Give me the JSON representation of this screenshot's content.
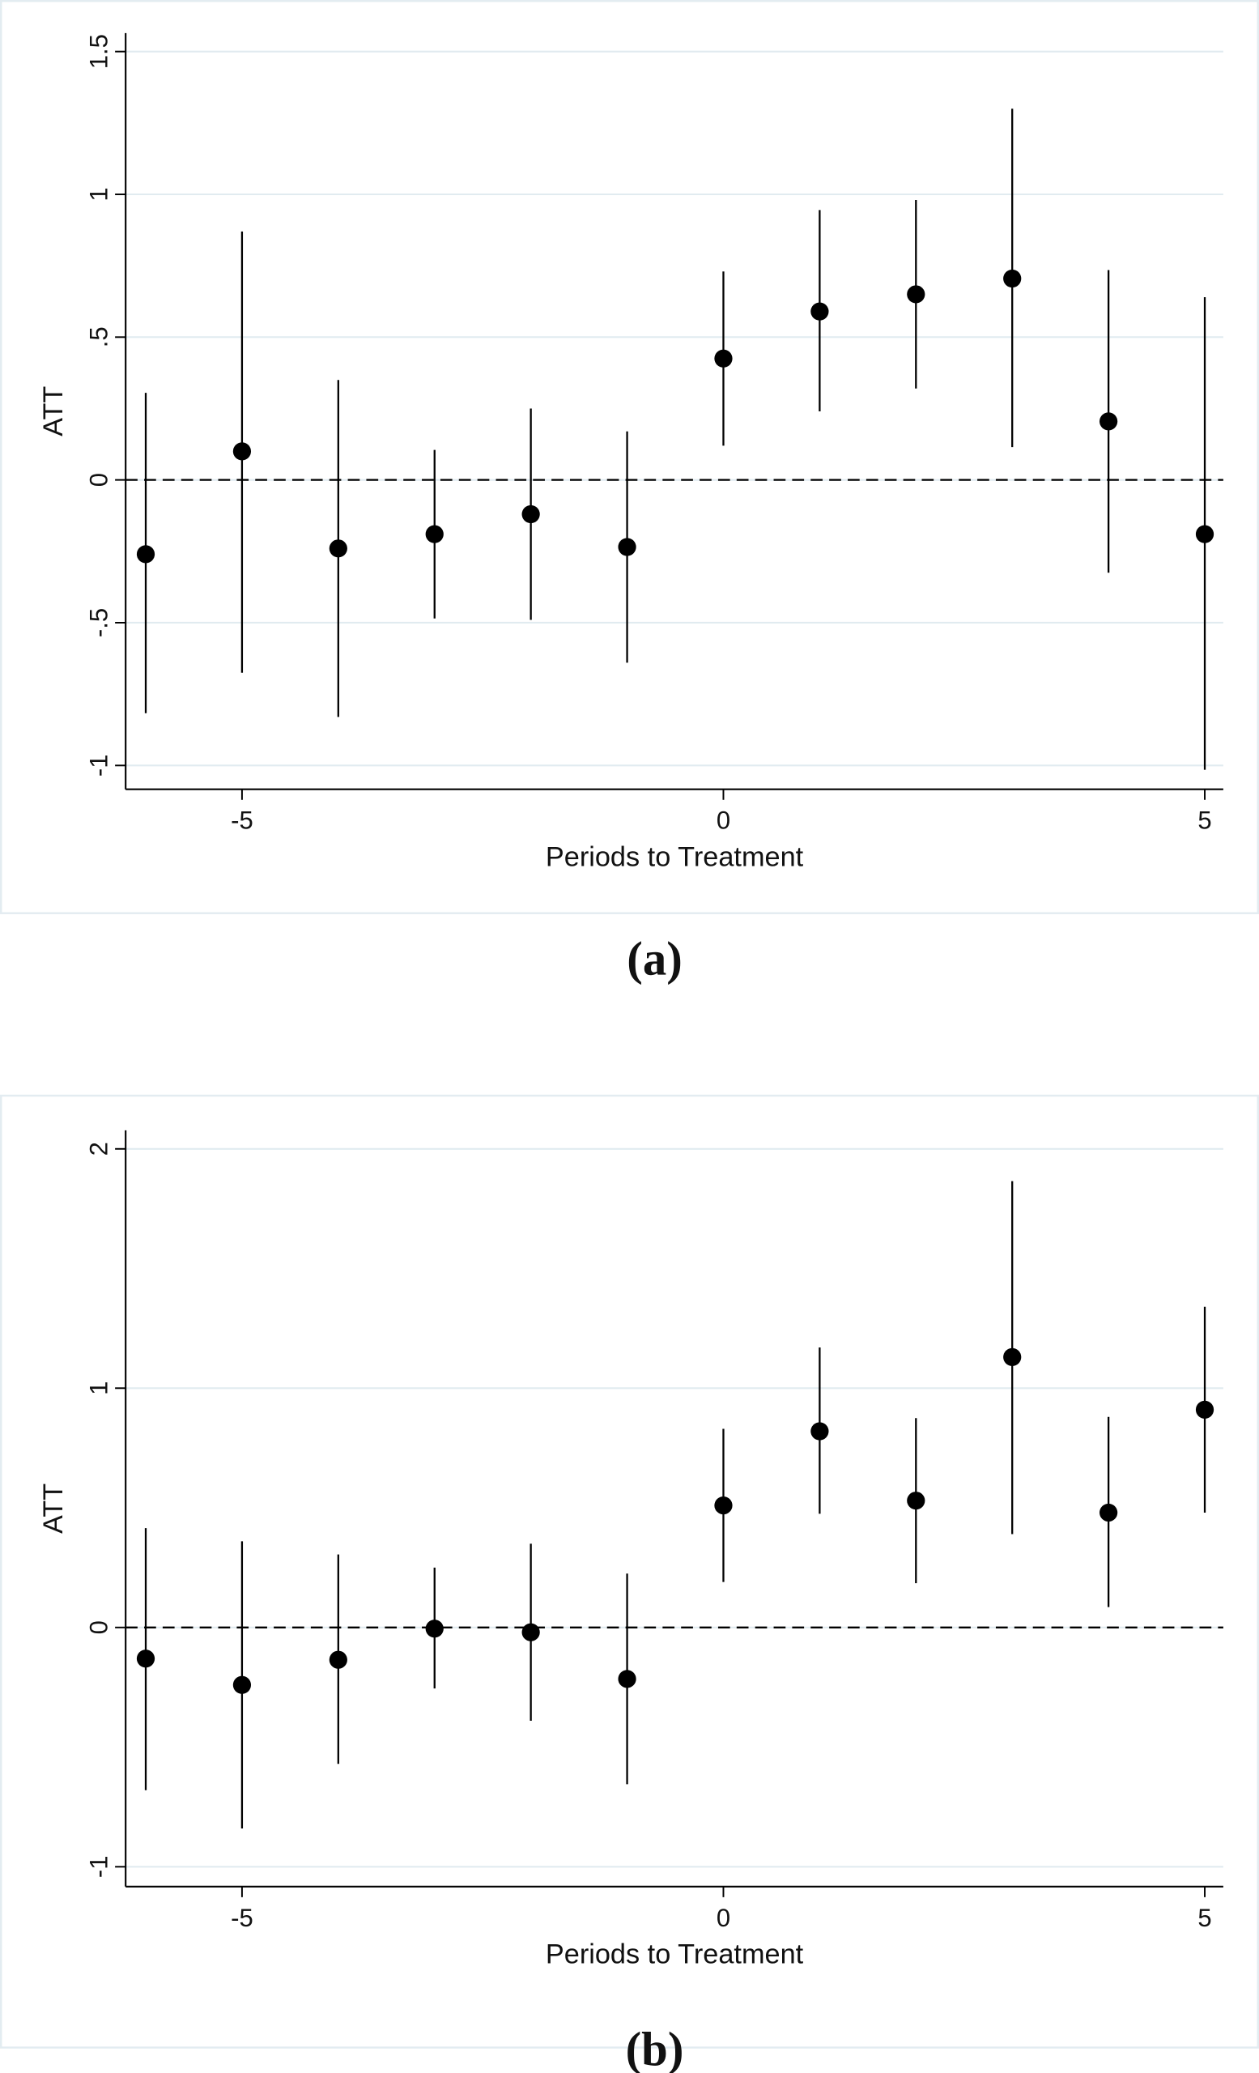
{
  "colors": {
    "panel_border": "#e3ecf1",
    "grid": "#e1ebf0",
    "marker": "#000000",
    "axis": "#000000"
  },
  "chart_data": [
    {
      "type": "scatter",
      "panel_label": "(a)",
      "title": "",
      "xlabel": "Periods to Treatment",
      "ylabel": "ATT",
      "xlim": [
        -6.2,
        5.2
      ],
      "ylim": [
        -1.08,
        1.57
      ],
      "xticks": [
        -5,
        0,
        5
      ],
      "xtick_labels": [
        "-5",
        "0",
        "5"
      ],
      "yticks": [
        1.5,
        1,
        0.5,
        0,
        -0.5,
        -1
      ],
      "ytick_labels": [
        "1.5",
        "1",
        ".5",
        "0",
        "-.5",
        "-1"
      ],
      "grid": true,
      "reference_line": {
        "y": 0,
        "style": "dashed"
      },
      "error_bars": "confidence interval",
      "x": [
        -6,
        -5,
        -4,
        -3,
        -2,
        -1,
        0,
        1,
        2,
        3,
        4,
        5
      ],
      "y": [
        -0.26,
        0.1,
        -0.24,
        -0.19,
        -0.12,
        -0.235,
        0.425,
        0.59,
        0.65,
        0.705,
        0.205,
        -0.19
      ],
      "ci_upper": [
        0.305,
        0.87,
        0.35,
        0.105,
        0.25,
        0.17,
        0.73,
        0.945,
        0.98,
        1.3,
        0.735,
        0.64
      ],
      "ci_lower": [
        -0.817,
        -0.675,
        -0.83,
        -0.485,
        -0.49,
        -0.64,
        0.12,
        0.24,
        0.32,
        0.115,
        -0.325,
        -1.015
      ]
    },
    {
      "type": "scatter",
      "panel_label": "(b)",
      "title": "",
      "xlabel": "Periods to Treatment",
      "ylabel": "ATT",
      "xlim": [
        -6.2,
        5.2
      ],
      "ylim": [
        -1.08,
        2.08
      ],
      "xticks": [
        -5,
        0,
        5
      ],
      "xtick_labels": [
        "-5",
        "0",
        "5"
      ],
      "yticks": [
        2,
        1,
        0,
        -1
      ],
      "ytick_labels": [
        "2",
        "1",
        "0",
        "-1"
      ],
      "grid": true,
      "reference_line": {
        "y": 0,
        "style": "dashed"
      },
      "error_bars": "confidence interval",
      "x": [
        -6,
        -5,
        -4,
        -3,
        -2,
        -1,
        0,
        1,
        2,
        3,
        4,
        5
      ],
      "y": [
        -0.13,
        -0.24,
        -0.135,
        -0.005,
        -0.02,
        -0.215,
        0.51,
        0.82,
        0.53,
        1.13,
        0.48,
        0.91
      ],
      "ci_upper": [
        0.415,
        0.36,
        0.305,
        0.25,
        0.35,
        0.225,
        0.83,
        1.17,
        0.875,
        1.865,
        0.88,
        1.34
      ],
      "ci_lower": [
        -0.68,
        -0.84,
        -0.57,
        -0.255,
        -0.39,
        -0.655,
        0.19,
        0.475,
        0.185,
        0.39,
        0.085,
        0.48
      ]
    }
  ]
}
